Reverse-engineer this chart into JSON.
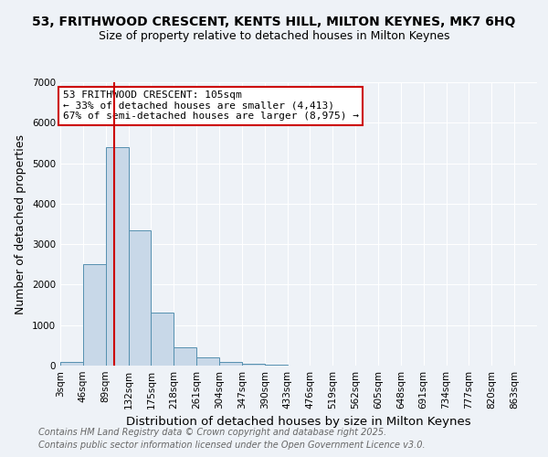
{
  "title_line1": "53, FRITHWOOD CRESCENT, KENTS HILL, MILTON KEYNES, MK7 6HQ",
  "title_line2": "Size of property relative to detached houses in Milton Keynes",
  "xlabel": "Distribution of detached houses by size in Milton Keynes",
  "ylabel": "Number of detached properties",
  "bin_labels": [
    "3sqm",
    "46sqm",
    "89sqm",
    "132sqm",
    "175sqm",
    "218sqm",
    "261sqm",
    "304sqm",
    "347sqm",
    "390sqm",
    "433sqm",
    "476sqm",
    "519sqm",
    "562sqm",
    "605sqm",
    "648sqm",
    "691sqm",
    "734sqm",
    "777sqm",
    "820sqm",
    "863sqm"
  ],
  "bin_edges": [
    3,
    46,
    89,
    132,
    175,
    218,
    261,
    304,
    347,
    390,
    433,
    476,
    519,
    562,
    605,
    648,
    691,
    734,
    777,
    820,
    863
  ],
  "bar_heights": [
    100,
    2500,
    5400,
    3350,
    1300,
    450,
    200,
    100,
    50,
    30,
    0,
    0,
    0,
    0,
    0,
    0,
    0,
    0,
    0,
    0
  ],
  "bar_color": "#c8d8e8",
  "bar_edge_color": "#5590b0",
  "property_size": 105,
  "annotation_line1": "53 FRITHWOOD CRESCENT: 105sqm",
  "annotation_line2": "← 33% of detached houses are smaller (4,413)",
  "annotation_line3": "67% of semi-detached houses are larger (8,975) →",
  "vline_color": "#cc0000",
  "annotation_box_color": "#cc0000",
  "ylim": [
    0,
    7000
  ],
  "yticks": [
    0,
    1000,
    2000,
    3000,
    4000,
    5000,
    6000,
    7000
  ],
  "footer_line1": "Contains HM Land Registry data © Crown copyright and database right 2025.",
  "footer_line2": "Contains public sector information licensed under the Open Government Licence v3.0.",
  "background_color": "#eef2f7",
  "grid_color": "#ffffff",
  "title_fontsize": 10,
  "subtitle_fontsize": 9,
  "axis_label_fontsize": 9,
  "tick_fontsize": 7.5,
  "annotation_fontsize": 8,
  "footer_fontsize": 7
}
